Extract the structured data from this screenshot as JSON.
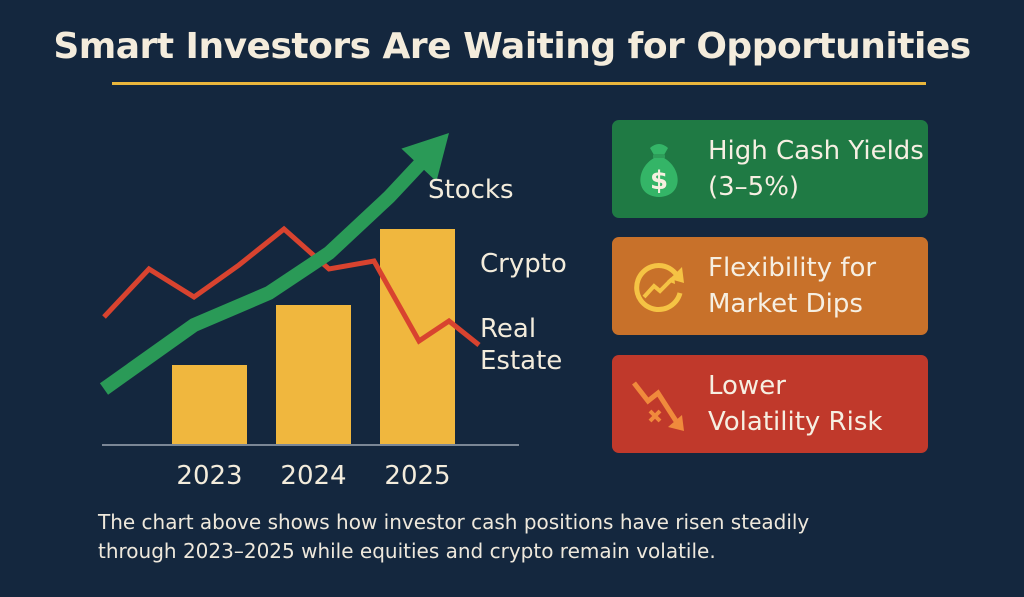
{
  "title": "Smart Investors Are Waiting for Opportunities",
  "colors": {
    "background": "#14273e",
    "accent": "#e9b63c",
    "bar": "#f0b73e",
    "trend_arrow": "#2a9a57",
    "volatile_line": "#d8432f",
    "card_green": "#1f7a44",
    "card_orange": "#c8712a",
    "card_red": "#c0392b"
  },
  "chart_data": {
    "type": "bar",
    "categories": [
      "2023",
      "2024",
      "2025"
    ],
    "values": [
      1,
      1.75,
      2.7
    ],
    "ylim": [
      0,
      3.0
    ],
    "overlays": [
      {
        "kind": "line-arrow",
        "color": "#2a9a57",
        "points": [
          [
            0,
            0.7
          ],
          [
            0.6,
            1.5
          ],
          [
            1.1,
            1.9
          ],
          [
            1.5,
            2.4
          ],
          [
            1.9,
            3.1
          ],
          [
            2.3,
            3.9
          ]
        ]
      },
      {
        "kind": "line",
        "color": "#d8432f",
        "points": [
          [
            0,
            1.6
          ],
          [
            0.3,
            2.2
          ],
          [
            0.6,
            1.85
          ],
          [
            0.9,
            2.25
          ],
          [
            1.2,
            2.7
          ],
          [
            1.5,
            2.2
          ],
          [
            1.8,
            2.3
          ],
          [
            2.1,
            1.3
          ],
          [
            2.3,
            1.55
          ],
          [
            2.5,
            1.25
          ]
        ]
      }
    ],
    "annotations": [
      "Stocks",
      "Crypto",
      "Real",
      "Estate"
    ]
  },
  "cards": [
    {
      "lines": [
        "High Cash Yields",
        "(3–5%)"
      ],
      "icon": "money-bag-icon",
      "color": "#1f7a44"
    },
    {
      "lines": [
        "Flexibility for",
        "Market Dips"
      ],
      "icon": "cycle-arrow-icon",
      "color": "#c8712a"
    },
    {
      "lines": [
        "Lower",
        "Volatility Risk"
      ],
      "icon": "down-trend-icon",
      "color": "#c0392b"
    }
  ],
  "caption": [
    "The chart above shows how investor cash positions have risen steadily",
    "through 2023–2025 while equities and crypto remain volatile."
  ]
}
